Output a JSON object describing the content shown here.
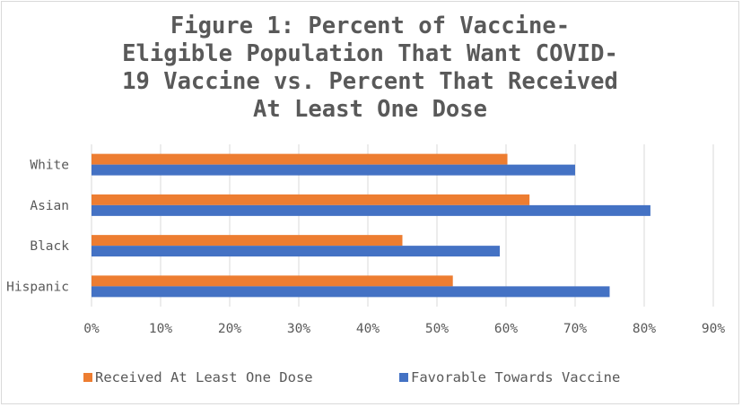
{
  "chart_data": {
    "type": "bar",
    "orientation": "horizontal",
    "title": "Figure 1: Percent of Vaccine-\nEligible Population That Want COVID-\n19 Vaccine vs. Percent That Received\nAt Least One Dose",
    "categories": [
      "White",
      "Asian",
      "Black",
      "Hispanic"
    ],
    "series": [
      {
        "name": "Received At Least One Dose",
        "color": "#ED7D31",
        "values": [
          60.2,
          63.4,
          45.0,
          52.3
        ]
      },
      {
        "name": "Favorable Towards Vaccine",
        "color": "#4472C4",
        "values": [
          70.0,
          80.9,
          59.1,
          75.0
        ]
      }
    ],
    "xlim": [
      0,
      90
    ],
    "x_ticks": [
      "0%",
      "10%",
      "20%",
      "30%",
      "40%",
      "50%",
      "60%",
      "70%",
      "80%",
      "90%"
    ],
    "gridlines": true,
    "legend_position": "bottom",
    "colors": {
      "gridline": "#d9d9d9",
      "text": "#595959"
    }
  }
}
